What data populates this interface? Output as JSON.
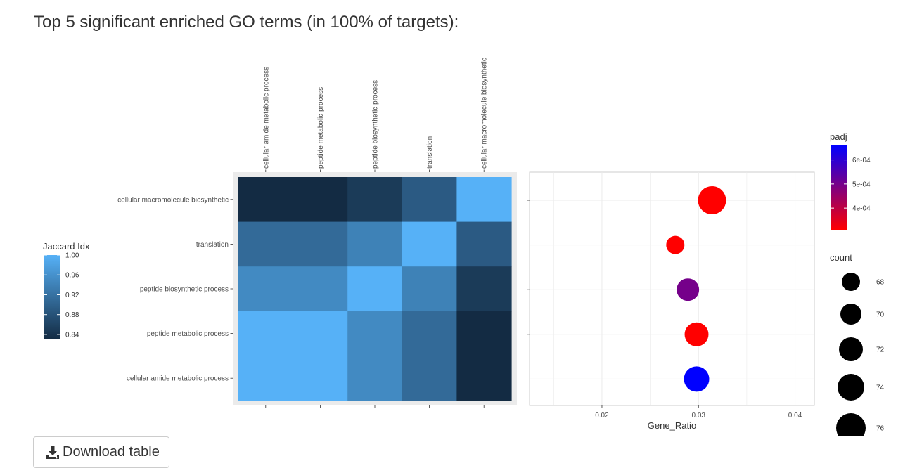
{
  "page": {
    "title": "Top 5 significant enriched GO terms (in 100% of targets):"
  },
  "download": {
    "label": "Download table",
    "icon": "download-icon"
  },
  "chart_data": [
    {
      "type": "heatmap",
      "title": "",
      "column_labels": [
        "cellular amide metabolic process",
        "peptide metabolic process",
        "peptide biosynthetic process",
        "translation",
        "cellular macromolecule biosynthetic"
      ],
      "row_labels": [
        "cellular macromolecule biosynthetic",
        "translation",
        "peptide biosynthetic process",
        "peptide metabolic process",
        "cellular amide metabolic process"
      ],
      "values": [
        [
          0.83,
          0.83,
          0.85,
          0.89,
          1.0
        ],
        [
          0.91,
          0.91,
          0.94,
          1.0,
          0.89
        ],
        [
          0.95,
          0.95,
          1.0,
          0.94,
          0.85
        ],
        [
          1.0,
          1.0,
          0.95,
          0.91,
          0.83
        ],
        [
          1.0,
          1.0,
          0.95,
          0.91,
          0.83
        ]
      ],
      "legend": {
        "title": "Jaccard Idx",
        "ticks": [
          "1.00",
          "0.96",
          "0.92",
          "0.88",
          "0.84"
        ],
        "tick_values": [
          1.0,
          0.96,
          0.92,
          0.88,
          0.84
        ],
        "range": [
          0.83,
          1.0
        ],
        "color_low": "#132B43",
        "color_high": "#56B1F7"
      }
    },
    {
      "type": "scatter",
      "title": "",
      "xlabel": "Gene_Ratio",
      "ylabel": "",
      "xlim": [
        0.0125,
        0.042
      ],
      "x_ticks": [
        "0.02",
        "0.03",
        "0.04"
      ],
      "x_tick_values": [
        0.02,
        0.03,
        0.04
      ],
      "categories": [
        "cellular macromolecule biosynthetic",
        "translation",
        "peptide biosynthetic process",
        "peptide metabolic process",
        "cellular amide metabolic process"
      ],
      "points": [
        {
          "x": 0.0314,
          "padj": 0.00031,
          "count": 75
        },
        {
          "x": 0.0276,
          "padj": 0.00031,
          "count": 68
        },
        {
          "x": 0.0289,
          "padj": 0.0005,
          "count": 71
        },
        {
          "x": 0.0298,
          "padj": 0.00031,
          "count": 72
        },
        {
          "x": 0.0298,
          "padj": 0.00066,
          "count": 73
        }
      ],
      "color_legend": {
        "title": "padj",
        "ticks": [
          "6e-04",
          "5e-04",
          "4e-04"
        ],
        "tick_values": [
          0.0006,
          0.0005,
          0.0004
        ],
        "range": [
          0.00031,
          0.00066
        ],
        "color_low": "#FF0000",
        "color_high": "#0000FF"
      },
      "size_legend": {
        "title": "count",
        "ticks": [
          "68",
          "70",
          "72",
          "74",
          "76"
        ],
        "tick_values": [
          68,
          70,
          72,
          74,
          76
        ]
      },
      "grid": true
    }
  ]
}
